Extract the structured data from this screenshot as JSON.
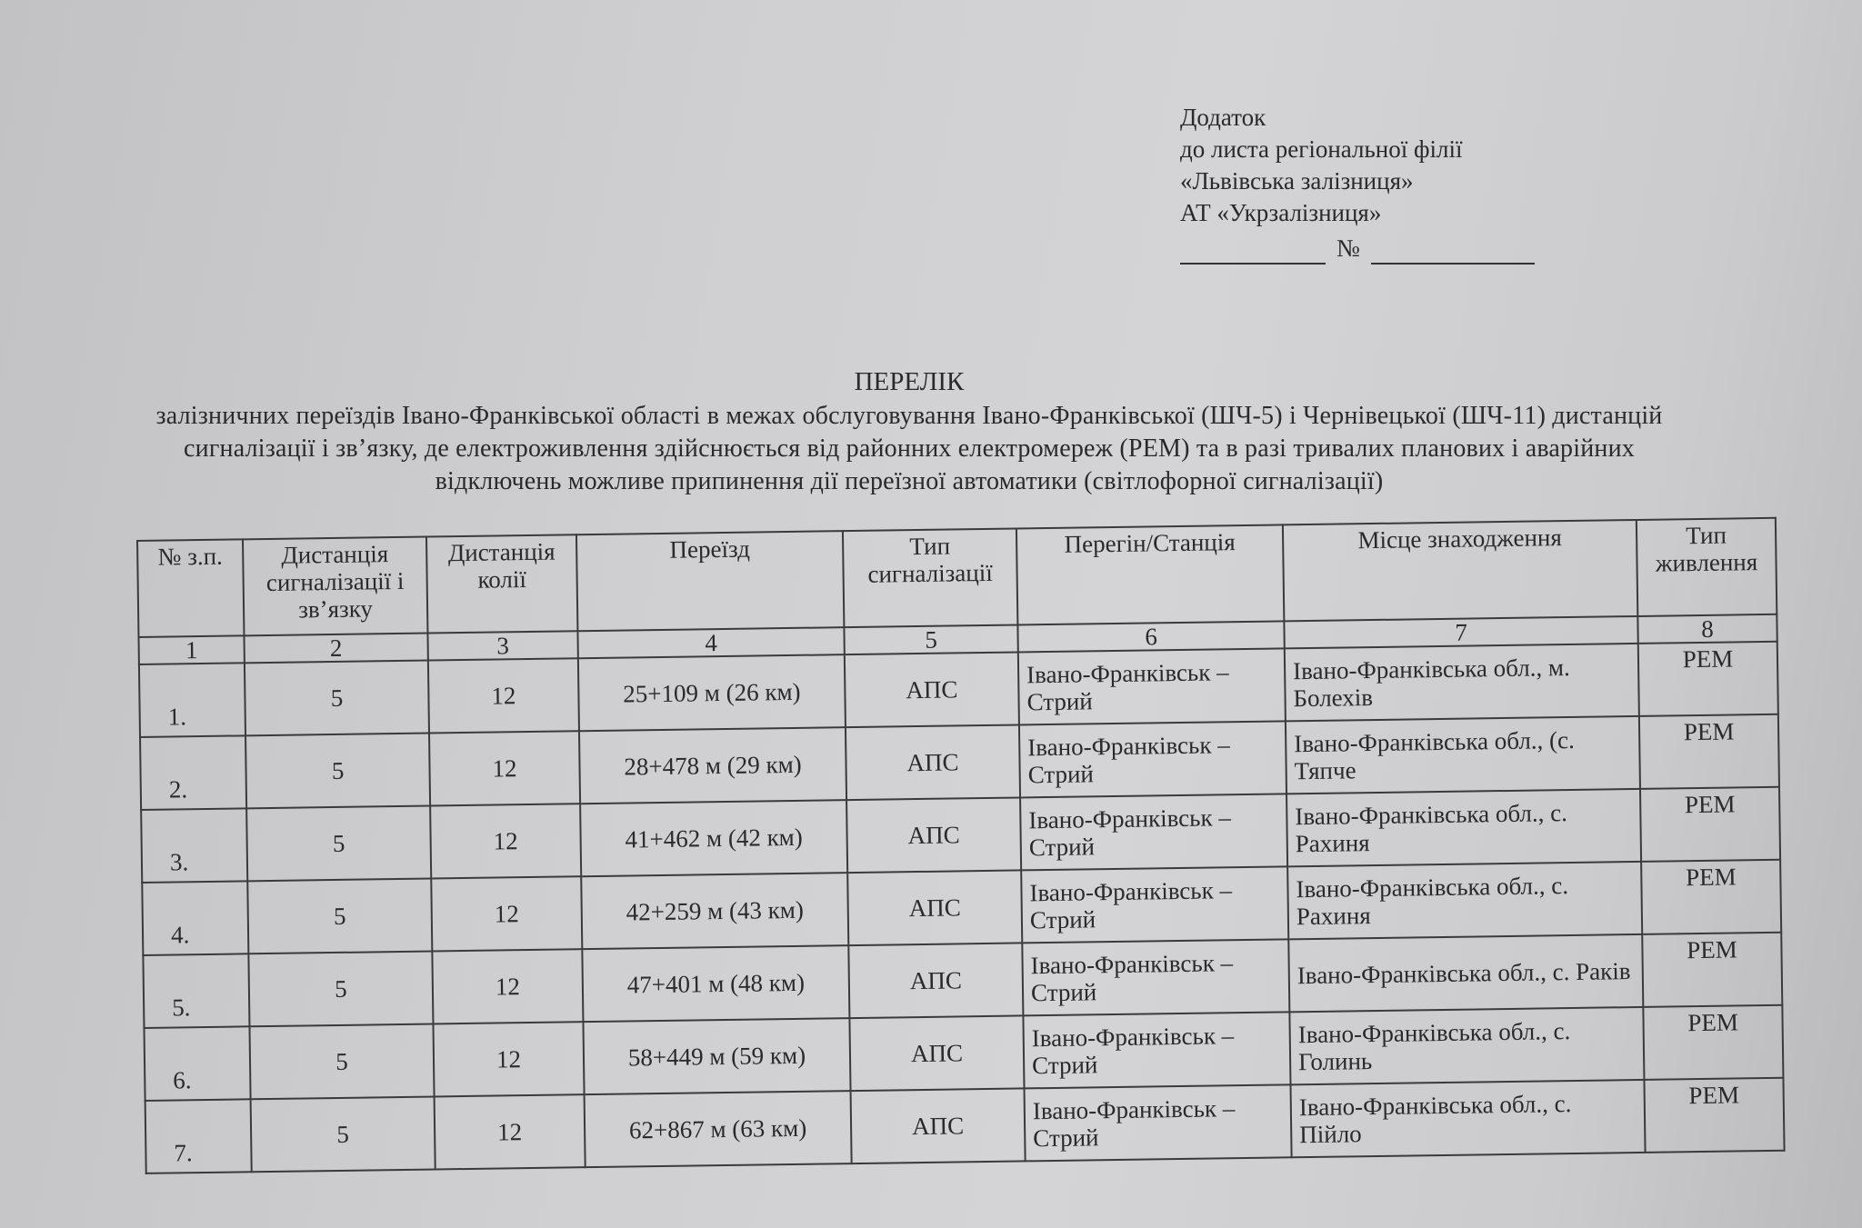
{
  "annex": {
    "lines": [
      "Додаток",
      "до листа регіональної філії",
      "«Львівська залізниця»",
      "АТ «Укрзалізниця»"
    ],
    "number_sign": "№"
  },
  "title": {
    "heading": "ПЕРЕЛІК",
    "description": "залізничних переїздів Івано-Франківської області в межах обслуговування Івано-Франківської (ШЧ-5) і Чернівецької (ШЧ-11) дистанцій сигналізації і зв’язку, де електроживлення здійснюється від районних електромереж (РЕМ) та в разі тривалих планових і аварійних відключень можливе припинення дії переїзної автоматики (світлофорної сигналізації)"
  },
  "table": {
    "headers": [
      "№ з.п.",
      "Дистанція сигналізації і зв’язку",
      "Дистанція колії",
      "Переїзд",
      "Тип сигналізації",
      "Перегін/Станція",
      "Місце знаходження",
      "Тип живлення"
    ],
    "column_numbers": [
      "1",
      "2",
      "3",
      "4",
      "5",
      "6",
      "7",
      "8"
    ],
    "rows": [
      [
        "1.",
        "5",
        "12",
        "25+109 м (26 км)",
        "АПС",
        "Івано-Франківськ – Стрий",
        "Івано-Франківська обл., м. Болехів",
        "РЕМ"
      ],
      [
        "2.",
        "5",
        "12",
        "28+478 м (29 км)",
        "АПС",
        "Івано-Франківськ – Стрий",
        "Івано-Франківська обл., (с. Тяпче",
        "РЕМ"
      ],
      [
        "3.",
        "5",
        "12",
        "41+462 м (42 км)",
        "АПС",
        "Івано-Франківськ – Стрий",
        "Івано-Франківська обл., с. Рахиня",
        "РЕМ"
      ],
      [
        "4.",
        "5",
        "12",
        "42+259 м (43 км)",
        "АПС",
        "Івано-Франківськ – Стрий",
        "Івано-Франківська обл., с. Рахиня",
        "РЕМ"
      ],
      [
        "5.",
        "5",
        "12",
        "47+401 м (48 км)",
        "АПС",
        "Івано-Франківськ – Стрий",
        "Івано-Франківська обл., с. Раків",
        "РЕМ"
      ],
      [
        "6.",
        "5",
        "12",
        "58+449 м (59 км)",
        "АПС",
        "Івано-Франківськ – Стрий",
        "Івано-Франківська обл., с. Голинь",
        "РЕМ"
      ],
      [
        "7.",
        "5",
        "12",
        "62+867 м (63 км)",
        "АПС",
        "Івано-Франківськ – Стрий",
        "Івано-Франківська обл., с. Пійло",
        "РЕМ"
      ]
    ]
  }
}
